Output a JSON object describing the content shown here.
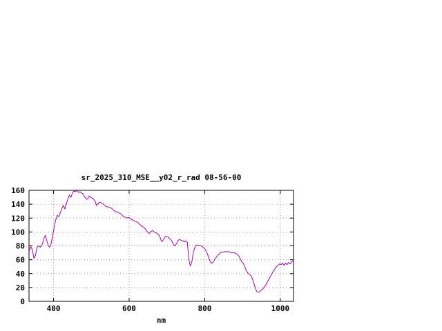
{
  "window": {
    "background": "#ffffff"
  },
  "chart_data": {
    "type": "line",
    "title": "sr_2025_310_MSE__y02_r_rad 08-56-00",
    "xlabel": "nm",
    "ylabel": "",
    "xlim": [
      335,
      1035
    ],
    "ylim": [
      0,
      160
    ],
    "x_ticks": [
      400,
      600,
      800,
      1000
    ],
    "y_ticks": [
      0,
      20,
      40,
      60,
      80,
      100,
      120,
      140,
      160
    ],
    "grid": true,
    "grid_color": "#999999",
    "axis_color": "#000000",
    "line_color": "#a800a8",
    "legend_position": "none",
    "series": [
      {
        "name": "sr_2025_310_MSE__y02_r_rad",
        "points": [
          [
            335,
            72
          ],
          [
            340,
            79
          ],
          [
            344,
            74
          ],
          [
            348,
            62
          ],
          [
            352,
            66
          ],
          [
            356,
            78
          ],
          [
            360,
            80
          ],
          [
            365,
            78
          ],
          [
            370,
            82
          ],
          [
            374,
            90
          ],
          [
            378,
            95
          ],
          [
            382,
            88
          ],
          [
            386,
            80
          ],
          [
            390,
            78
          ],
          [
            394,
            84
          ],
          [
            398,
            96
          ],
          [
            402,
            108
          ],
          [
            406,
            118
          ],
          [
            410,
            124
          ],
          [
            414,
            122
          ],
          [
            418,
            128
          ],
          [
            422,
            134
          ],
          [
            426,
            138
          ],
          [
            430,
            133
          ],
          [
            434,
            141
          ],
          [
            438,
            148
          ],
          [
            442,
            153
          ],
          [
            446,
            150
          ],
          [
            450,
            156
          ],
          [
            454,
            159
          ],
          [
            458,
            158
          ],
          [
            462,
            160
          ],
          [
            466,
            157
          ],
          [
            470,
            158
          ],
          [
            474,
            156
          ],
          [
            478,
            155
          ],
          [
            482,
            151
          ],
          [
            486,
            148
          ],
          [
            490,
            147
          ],
          [
            494,
            152
          ],
          [
            498,
            150
          ],
          [
            502,
            149
          ],
          [
            506,
            147
          ],
          [
            510,
            144
          ],
          [
            514,
            138
          ],
          [
            518,
            141
          ],
          [
            522,
            143
          ],
          [
            526,
            142
          ],
          [
            530,
            141
          ],
          [
            534,
            139
          ],
          [
            538,
            137
          ],
          [
            542,
            136
          ],
          [
            546,
            136
          ],
          [
            550,
            135
          ],
          [
            554,
            134
          ],
          [
            558,
            132
          ],
          [
            562,
            130
          ],
          [
            566,
            129
          ],
          [
            570,
            129
          ],
          [
            574,
            127
          ],
          [
            578,
            126
          ],
          [
            582,
            124
          ],
          [
            586,
            122
          ],
          [
            590,
            121
          ],
          [
            594,
            120
          ],
          [
            598,
            121
          ],
          [
            602,
            120
          ],
          [
            606,
            118
          ],
          [
            610,
            117
          ],
          [
            614,
            116
          ],
          [
            618,
            115
          ],
          [
            622,
            114
          ],
          [
            626,
            112
          ],
          [
            630,
            110
          ],
          [
            634,
            108
          ],
          [
            638,
            107
          ],
          [
            642,
            105
          ],
          [
            646,
            102
          ],
          [
            650,
            99
          ],
          [
            654,
            98
          ],
          [
            658,
            101
          ],
          [
            662,
            102
          ],
          [
            666,
            100
          ],
          [
            670,
            99
          ],
          [
            674,
            98
          ],
          [
            678,
            96
          ],
          [
            682,
            92
          ],
          [
            686,
            86
          ],
          [
            690,
            88
          ],
          [
            694,
            92
          ],
          [
            698,
            94
          ],
          [
            702,
            93
          ],
          [
            706,
            91
          ],
          [
            710,
            89
          ],
          [
            714,
            86
          ],
          [
            718,
            81
          ],
          [
            722,
            80
          ],
          [
            726,
            84
          ],
          [
            730,
            88
          ],
          [
            734,
            89
          ],
          [
            738,
            88
          ],
          [
            742,
            87
          ],
          [
            746,
            86
          ],
          [
            750,
            87
          ],
          [
            754,
            85
          ],
          [
            758,
            60
          ],
          [
            762,
            51
          ],
          [
            766,
            57
          ],
          [
            770,
            71
          ],
          [
            774,
            78
          ],
          [
            778,
            81
          ],
          [
            782,
            81
          ],
          [
            786,
            80
          ],
          [
            790,
            80
          ],
          [
            794,
            79
          ],
          [
            798,
            77
          ],
          [
            802,
            74
          ],
          [
            806,
            70
          ],
          [
            810,
            64
          ],
          [
            814,
            58
          ],
          [
            818,
            55
          ],
          [
            822,
            56
          ],
          [
            826,
            60
          ],
          [
            830,
            63
          ],
          [
            834,
            66
          ],
          [
            838,
            68
          ],
          [
            842,
            70
          ],
          [
            846,
            71
          ],
          [
            850,
            71
          ],
          [
            854,
            72
          ],
          [
            858,
            71
          ],
          [
            862,
            72
          ],
          [
            866,
            71
          ],
          [
            870,
            70
          ],
          [
            874,
            70
          ],
          [
            878,
            70
          ],
          [
            882,
            69
          ],
          [
            886,
            68
          ],
          [
            890,
            66
          ],
          [
            894,
            61
          ],
          [
            898,
            57
          ],
          [
            902,
            55
          ],
          [
            906,
            50
          ],
          [
            910,
            44
          ],
          [
            914,
            41
          ],
          [
            918,
            39
          ],
          [
            922,
            37
          ],
          [
            926,
            33
          ],
          [
            930,
            26
          ],
          [
            934,
            19
          ],
          [
            938,
            14
          ],
          [
            942,
            13
          ],
          [
            946,
            14
          ],
          [
            950,
            16
          ],
          [
            954,
            18
          ],
          [
            958,
            21
          ],
          [
            962,
            24
          ],
          [
            966,
            28
          ],
          [
            970,
            32
          ],
          [
            974,
            36
          ],
          [
            978,
            40
          ],
          [
            982,
            44
          ],
          [
            986,
            47
          ],
          [
            990,
            50
          ],
          [
            994,
            52
          ],
          [
            998,
            54
          ],
          [
            1002,
            53
          ],
          [
            1006,
            55
          ],
          [
            1010,
            52
          ],
          [
            1014,
            55
          ],
          [
            1018,
            53
          ],
          [
            1022,
            56
          ],
          [
            1026,
            54
          ],
          [
            1030,
            57
          ],
          [
            1034,
            59
          ]
        ]
      }
    ]
  }
}
